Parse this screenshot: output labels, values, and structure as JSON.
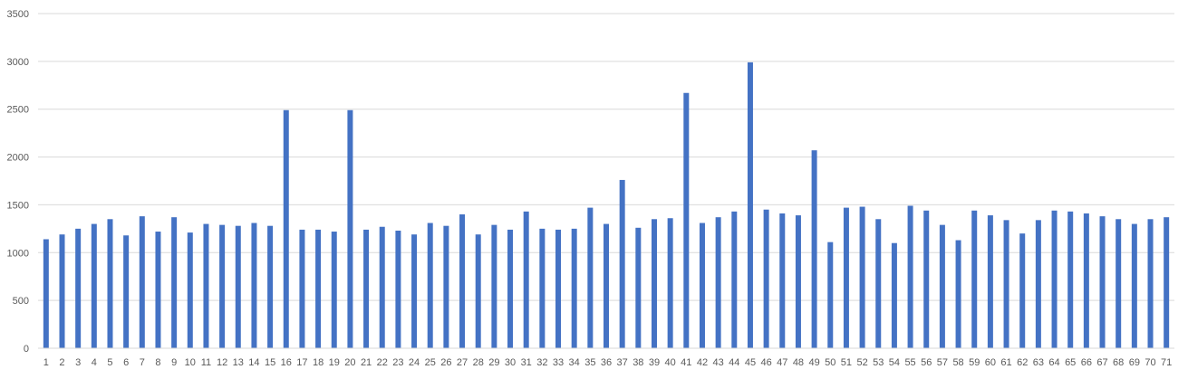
{
  "chart_data": {
    "type": "bar",
    "title": "",
    "xlabel": "",
    "ylabel": "",
    "ylim": [
      0,
      3500
    ],
    "yticks": [
      0,
      500,
      1000,
      1500,
      2000,
      2500,
      3000,
      3500
    ],
    "grid": true,
    "legend": "none",
    "bar_color": "#4472C4",
    "categories": [
      "1",
      "2",
      "3",
      "4",
      "5",
      "6",
      "7",
      "8",
      "9",
      "10",
      "11",
      "12",
      "13",
      "14",
      "15",
      "16",
      "17",
      "18",
      "19",
      "20",
      "21",
      "22",
      "23",
      "24",
      "25",
      "26",
      "27",
      "28",
      "29",
      "30",
      "31",
      "32",
      "33",
      "34",
      "35",
      "36",
      "37",
      "38",
      "39",
      "40",
      "41",
      "42",
      "43",
      "44",
      "45",
      "46",
      "47",
      "48",
      "49",
      "50",
      "51",
      "52",
      "53",
      "54",
      "55",
      "56",
      "57",
      "58",
      "59",
      "60",
      "61",
      "62",
      "63",
      "64",
      "65",
      "66",
      "67",
      "68",
      "69",
      "70",
      "71"
    ],
    "values": [
      1140,
      1190,
      1250,
      1300,
      1350,
      1180,
      1380,
      1220,
      1370,
      1210,
      1300,
      1290,
      1280,
      1310,
      1280,
      2490,
      1240,
      1240,
      1220,
      2490,
      1240,
      1270,
      1230,
      1190,
      1310,
      1280,
      1400,
      1190,
      1290,
      1240,
      1430,
      1250,
      1240,
      1250,
      1470,
      1300,
      1760,
      1260,
      1350,
      1360,
      2670,
      1310,
      1370,
      1430,
      2990,
      1450,
      1410,
      1390,
      2070,
      1110,
      1470,
      1480,
      1350,
      1100,
      1490,
      1440,
      1290,
      1130,
      1440,
      1390,
      1340,
      1200,
      1340,
      1440,
      1430,
      1410,
      1380,
      1350,
      1300,
      1350,
      1370
    ]
  }
}
